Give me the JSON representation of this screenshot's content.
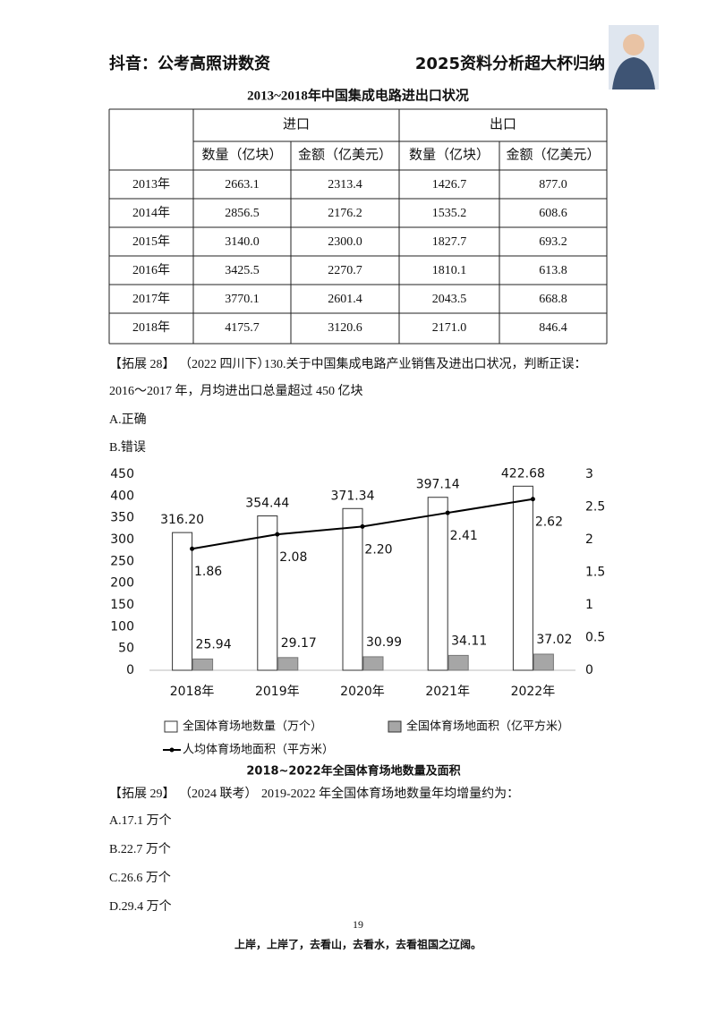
{
  "header": {
    "left": "抖音：公考高照讲数资",
    "right": "2025资料分析超大杯归纳"
  },
  "table": {
    "title": "2013~2018年中国集成电路进出口状况",
    "group_headers": [
      "进口",
      "出口"
    ],
    "column_headers": [
      "数量（亿块）",
      "金额（亿美元）",
      "数量（亿块）",
      "金额（亿美元）"
    ],
    "rows": [
      [
        "2013年",
        "2663.1",
        "2313.4",
        "1426.7",
        "877.0"
      ],
      [
        "2014年",
        "2856.5",
        "2176.2",
        "1535.2",
        "608.6"
      ],
      [
        "2015年",
        "3140.0",
        "2300.0",
        "1827.7",
        "693.2"
      ],
      [
        "2016年",
        "3425.5",
        "2270.7",
        "1810.1",
        "613.8"
      ],
      [
        "2017年",
        "3770.1",
        "2601.4",
        "2043.5",
        "668.8"
      ],
      [
        "2018年",
        "4175.7",
        "3120.6",
        "2171.0",
        "846.4"
      ]
    ]
  },
  "question_28": {
    "label": "【拓展 28】",
    "source": "（2022 四川下）",
    "stem": "130.关于中国集成电路产业销售及进出口状况，判断正误：",
    "statement": "2016～2017 年，月均进出口总量超过 450 亿块",
    "options": [
      "A.正确",
      "B.错误"
    ]
  },
  "chart_data": {
    "type": "bar",
    "title": "2018~2022年全国体育场地数量及面积",
    "categories": [
      "2018年",
      "2019年",
      "2020年",
      "2021年",
      "2022年"
    ],
    "series": [
      {
        "name": "全国体育场地数量（万个）",
        "color": "#ffffff",
        "values": [
          316.2,
          354.44,
          371.34,
          397.14,
          422.68
        ],
        "value_labels": [
          "316.20",
          "354.44",
          "371.34",
          "397.14",
          "422.68"
        ]
      },
      {
        "name": "全国体育场地面积（亿平方米）",
        "color": "#a6a6a6",
        "values": [
          25.94,
          29.17,
          30.99,
          34.11,
          37.02
        ]
      },
      {
        "name": "人均体育场地面积（平方米）",
        "type": "line",
        "axis": "y2",
        "color": "#000000",
        "values": [
          1.86,
          2.08,
          2.2,
          2.41,
          2.62
        ],
        "value_labels": [
          "1.86",
          "2.08",
          "2.20",
          "2.41",
          "2.62"
        ]
      }
    ],
    "ylim": [
      0,
      450
    ],
    "yticks": [
      0,
      50,
      100,
      150,
      200,
      250,
      300,
      350,
      400,
      450
    ],
    "y2lim": [
      0,
      3
    ],
    "y2ticks": [
      0,
      0.5,
      1,
      1.5,
      2,
      2.5,
      3
    ]
  },
  "question_29": {
    "label": "【拓展 29】",
    "source": "（2024 联考）",
    "stem": "2019-2022 年全国体育场地数量年均增量约为：",
    "options": [
      "A.17.1 万个",
      "B.22.7 万个",
      "C.26.6 万个",
      "D.29.4 万个"
    ]
  },
  "footer": {
    "page": "19",
    "slogan": "上岸，上岸了，去看山，去看水，去看祖国之辽阔。"
  }
}
